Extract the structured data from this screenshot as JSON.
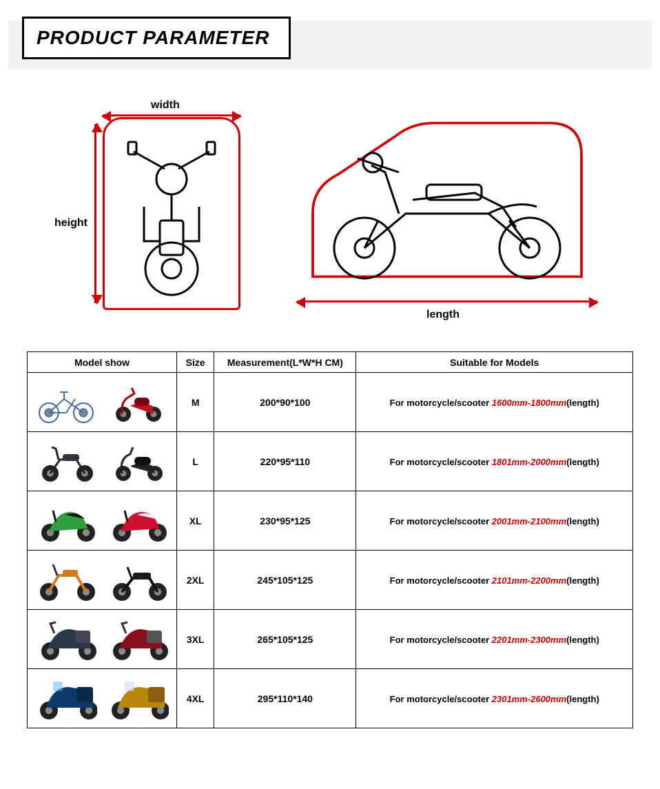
{
  "header": {
    "title": "PRODUCT PARAMETER"
  },
  "diagram": {
    "width_label": "width",
    "height_label": "height",
    "length_label": "length",
    "outline_color": "#d20000",
    "arrow_color": "#d20000"
  },
  "table": {
    "columns": [
      "Model show",
      "Size",
      "Measurement(L*W*H CM)",
      "Suitable for Models"
    ],
    "suitable_prefix": "For motorcycle/scooter ",
    "suitable_suffix": "(length)",
    "rows": [
      {
        "size": "M",
        "measurement": "200*90*100",
        "range": "1600mm-1800mm",
        "model_type": "bicycle_scooter"
      },
      {
        "size": "L",
        "measurement": "220*95*110",
        "range": "1801mm-2000mm",
        "model_type": "moped_scooter"
      },
      {
        "size": "XL",
        "measurement": "230*95*125",
        "range": "2001mm-2100mm",
        "model_type": "sportbike"
      },
      {
        "size": "2XL",
        "measurement": "245*105*125",
        "range": "2101mm-2200mm",
        "model_type": "dirt_naked"
      },
      {
        "size": "3XL",
        "measurement": "265*105*125",
        "range": "2201mm-2300mm",
        "model_type": "touring"
      },
      {
        "size": "4XL",
        "measurement": "295*110*140",
        "range": "2301mm-2600mm",
        "model_type": "cruiser"
      }
    ],
    "colors": {
      "range_text": "#d20000",
      "border": "#000000"
    }
  }
}
